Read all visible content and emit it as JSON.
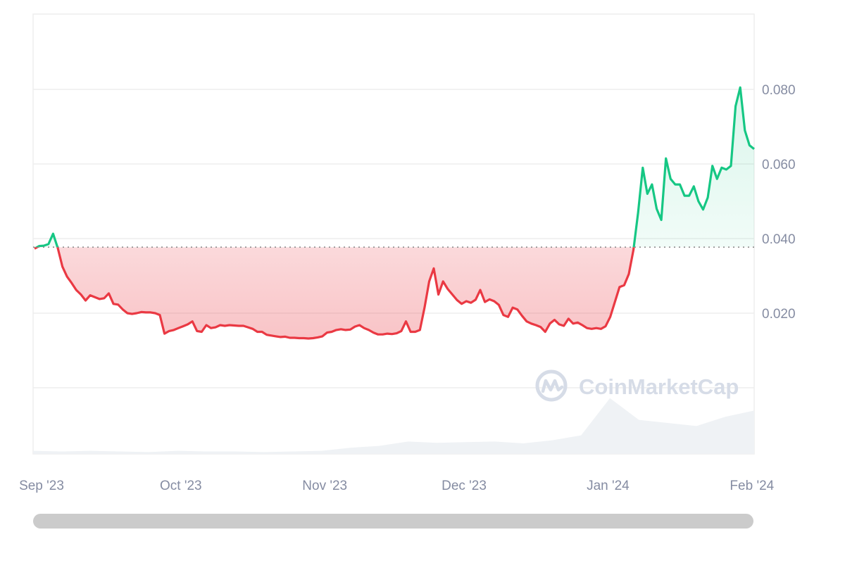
{
  "chart_data": {
    "type": "line",
    "title": "",
    "xlabel": "",
    "ylabel": "",
    "x_range": [
      "2023-09-01",
      "2024-02-03"
    ],
    "ylim": [
      0,
      0.1
    ],
    "y_ticks": [
      {
        "value": 0.02,
        "label": "0.020"
      },
      {
        "value": 0.04,
        "label": "0.040"
      },
      {
        "value": 0.06,
        "label": "0.060"
      },
      {
        "value": 0.08,
        "label": "0.080"
      }
    ],
    "y_axis_position": "right",
    "x_ticks": [
      {
        "date": "2023-09-01",
        "label": "Sep '23"
      },
      {
        "date": "2023-10-01",
        "label": "Oct '23"
      },
      {
        "date": "2023-11-01",
        "label": "Nov '23"
      },
      {
        "date": "2023-12-01",
        "label": "Dec '23"
      },
      {
        "date": "2024-01-01",
        "label": "Jan '24"
      },
      {
        "date": "2024-02-01",
        "label": "Feb '24"
      }
    ],
    "grid": true,
    "baseline_price": 0.0377,
    "colors": {
      "above_baseline": "#16c784",
      "below_baseline": "#ea3943",
      "volume": "#eff2f5",
      "grid": "#eeeeee",
      "baseline": "#8d8d8d"
    },
    "daily_price_by_month": {
      "2023-09": [
        0.0373,
        0.038,
        0.0381,
        0.0385,
        0.0413,
        0.0375,
        0.0325,
        0.0298,
        0.0281,
        0.0262,
        0.025,
        0.0234,
        0.0248,
        0.0243,
        0.0238,
        0.024,
        0.0253,
        0.0225,
        0.0223,
        0.021,
        0.02,
        0.0198,
        0.02,
        0.0203,
        0.0202,
        0.0202,
        0.02,
        0.0195,
        0.0145,
        0.0152
      ],
      "2023-10": [
        0.0155,
        0.016,
        0.0165,
        0.017,
        0.0178,
        0.0152,
        0.015,
        0.0168,
        0.016,
        0.0162,
        0.0168,
        0.0166,
        0.0168,
        0.0167,
        0.0166,
        0.0166,
        0.0162,
        0.0158,
        0.015,
        0.015,
        0.0142,
        0.014,
        0.0138,
        0.0136,
        0.0137,
        0.0134,
        0.0134,
        0.0133,
        0.0133,
        0.0132,
        0.0133
      ],
      "2023-11": [
        0.0135,
        0.0138,
        0.0148,
        0.015,
        0.0155,
        0.0157,
        0.0155,
        0.0156,
        0.0164,
        0.0168,
        0.016,
        0.0155,
        0.0148,
        0.0143,
        0.0143,
        0.0145,
        0.0144,
        0.0146,
        0.0152,
        0.0178,
        0.015,
        0.015,
        0.0155,
        0.0215,
        0.0285,
        0.032,
        0.025,
        0.0285,
        0.0265,
        0.025
      ],
      "2023-12": [
        0.0235,
        0.0225,
        0.0232,
        0.0228,
        0.0236,
        0.0262,
        0.023,
        0.0237,
        0.0232,
        0.0222,
        0.0195,
        0.019,
        0.0215,
        0.021,
        0.0193,
        0.0178,
        0.0172,
        0.0168,
        0.0163,
        0.015,
        0.0172,
        0.0182,
        0.017,
        0.0166,
        0.0185,
        0.0172,
        0.0175,
        0.0168,
        0.016,
        0.0158,
        0.016
      ],
      "2024-01": [
        0.0158,
        0.0165,
        0.019,
        0.023,
        0.027,
        0.0275,
        0.0305,
        0.037,
        0.047,
        0.059,
        0.052,
        0.0545,
        0.048,
        0.045,
        0.0615,
        0.056,
        0.0545,
        0.0545,
        0.0515,
        0.0515,
        0.054,
        0.05,
        0.0478,
        0.051,
        0.0595,
        0.056,
        0.059,
        0.0585,
        0.0595,
        0.0755,
        0.0805
      ],
      "2024-02": [
        0.069,
        0.065,
        0.064
      ]
    },
    "volume_relative_weekly": [
      0.05,
      0.04,
      0.05,
      0.04,
      0.03,
      0.05,
      0.04,
      0.04,
      0.03,
      0.04,
      0.05,
      0.1,
      0.13,
      0.2,
      0.18,
      0.19,
      0.2,
      0.17,
      0.22,
      0.3,
      0.9,
      0.55,
      0.5,
      0.45,
      0.6,
      0.7
    ]
  },
  "watermark": {
    "text": "CoinMarketCap"
  }
}
